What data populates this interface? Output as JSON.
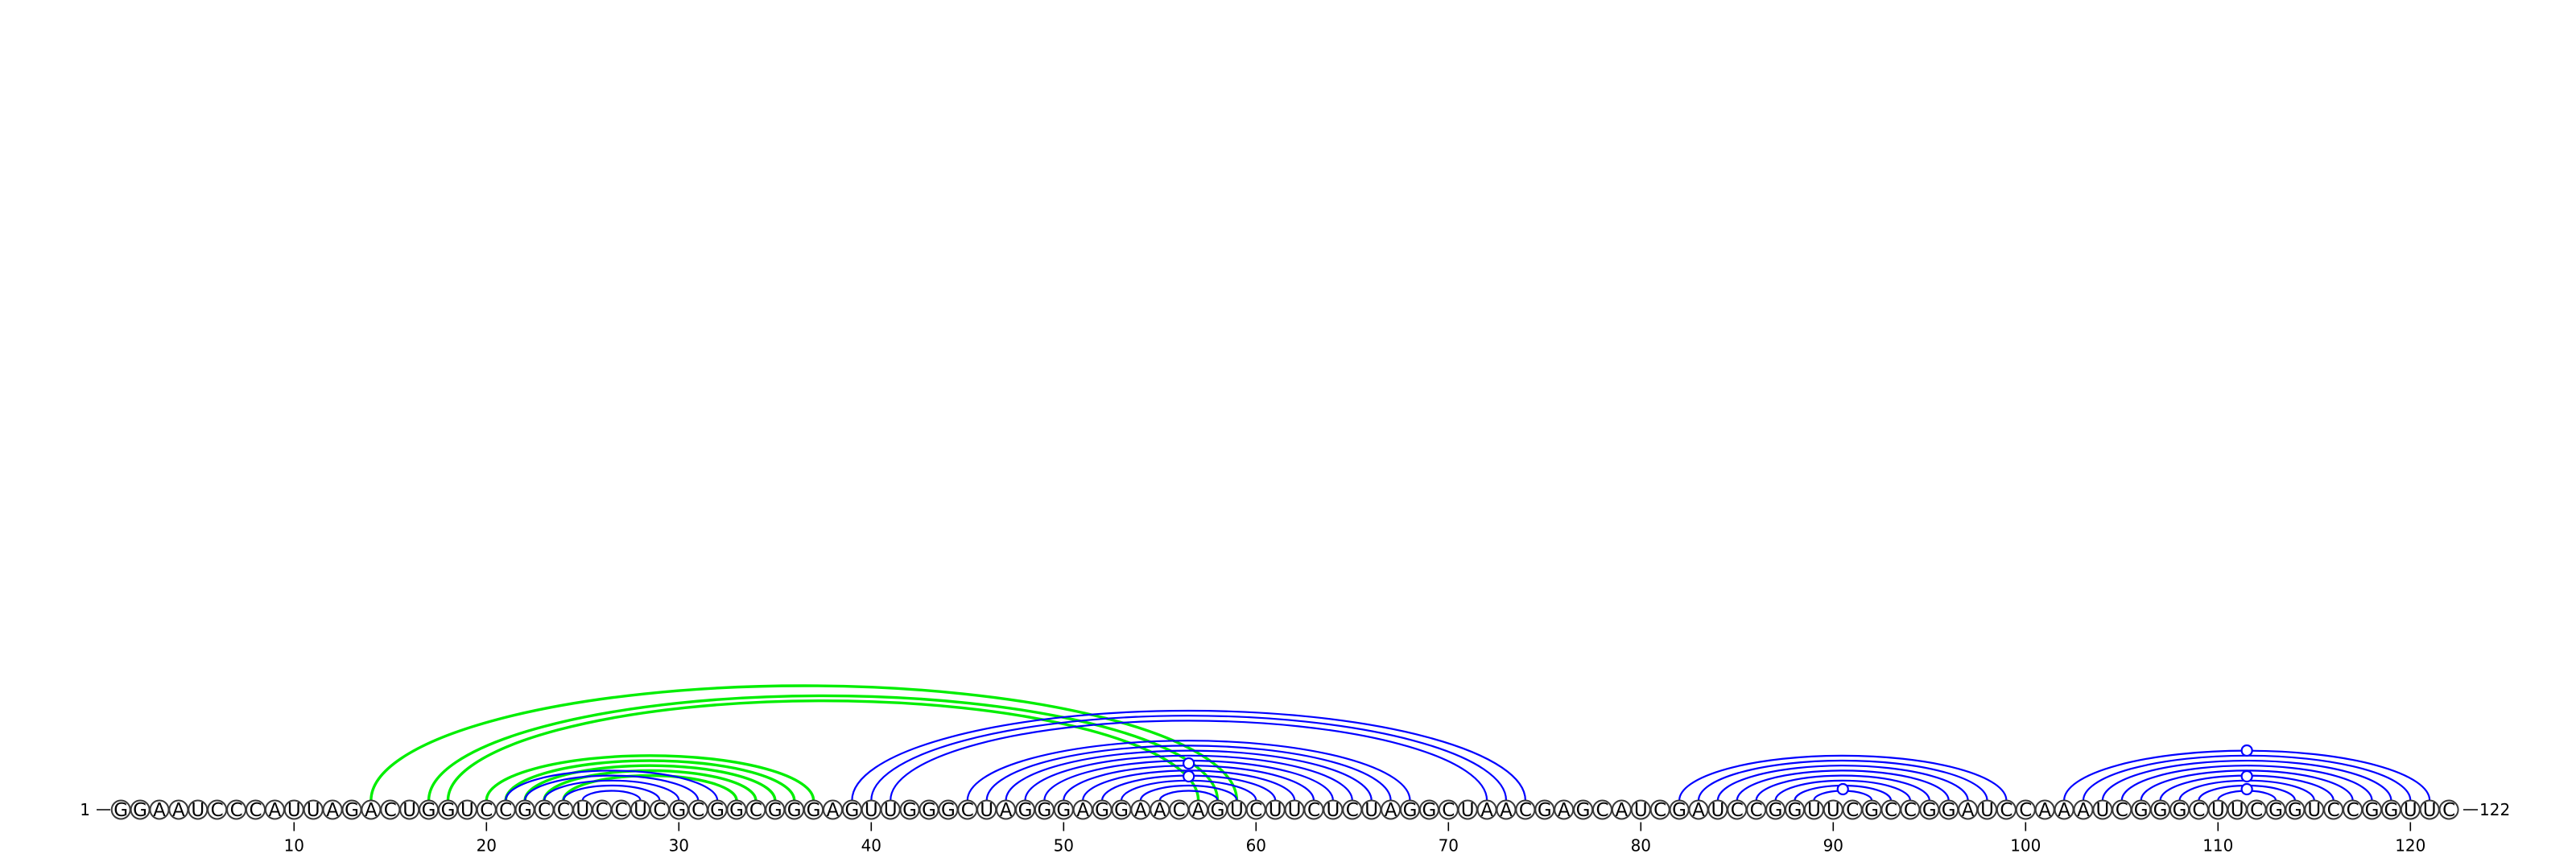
{
  "diagram": {
    "sequence": "GGAAUCCCAUUAGACUGGUCCGCCUCCUCGCGGCGGGAGUUGGGCUAGGGAGGAACAGUCUUCUCUAGGCUAACGAGCAUCGAUCCGGUUCGCCGGAUCCAAAUCGGGCUUCGGUCCGGUUC",
    "start_label": "1",
    "end_label": "122",
    "ticks": [
      "10",
      "20",
      "30",
      "40",
      "50",
      "60",
      "70",
      "80",
      "90",
      "100",
      "110",
      "120"
    ],
    "colors": {
      "pair": "#0000ff",
      "alt_pair": "#00ee00",
      "text": "#000000",
      "background": "#ffffff"
    },
    "pairs": [
      [
        39,
        74
      ],
      [
        40,
        73
      ],
      [
        41,
        72
      ],
      [
        45,
        68
      ],
      [
        46,
        67
      ],
      [
        47,
        66
      ],
      [
        48,
        65
      ],
      [
        49,
        64
      ],
      [
        50,
        63
      ],
      [
        51,
        62
      ],
      [
        52,
        61
      ],
      [
        53,
        60
      ],
      [
        54,
        59
      ],
      [
        55,
        58
      ],
      [
        21,
        32
      ],
      [
        22,
        31
      ],
      [
        23,
        30
      ],
      [
        24,
        29
      ],
      [
        25,
        28
      ],
      [
        82,
        99
      ],
      [
        83,
        98
      ],
      [
        84,
        97
      ],
      [
        85,
        96
      ],
      [
        86,
        95
      ],
      [
        87,
        94
      ],
      [
        88,
        93
      ],
      [
        89,
        92
      ],
      [
        102,
        121
      ],
      [
        103,
        120
      ],
      [
        104,
        119
      ],
      [
        105,
        118
      ],
      [
        106,
        117
      ],
      [
        107,
        116
      ],
      [
        108,
        115
      ],
      [
        109,
        114
      ],
      [
        110,
        113
      ]
    ],
    "alt_pairs": [
      [
        14,
        59
      ],
      [
        17,
        58
      ],
      [
        18,
        57
      ],
      [
        20,
        37
      ],
      [
        21,
        36
      ],
      [
        22,
        35
      ],
      [
        23,
        34
      ],
      [
        24,
        33
      ]
    ],
    "loop_dots": [
      {
        "base": 56.5,
        "rise": 2.0
      },
      {
        "base": 56.5,
        "rise": 1.0
      },
      {
        "base": 90.5,
        "rise": 0
      },
      {
        "base": 111.5,
        "rise": 0
      },
      {
        "base": 111.5,
        "rise": 1.0
      },
      {
        "base": 111.5,
        "rise": 3.0
      }
    ]
  }
}
